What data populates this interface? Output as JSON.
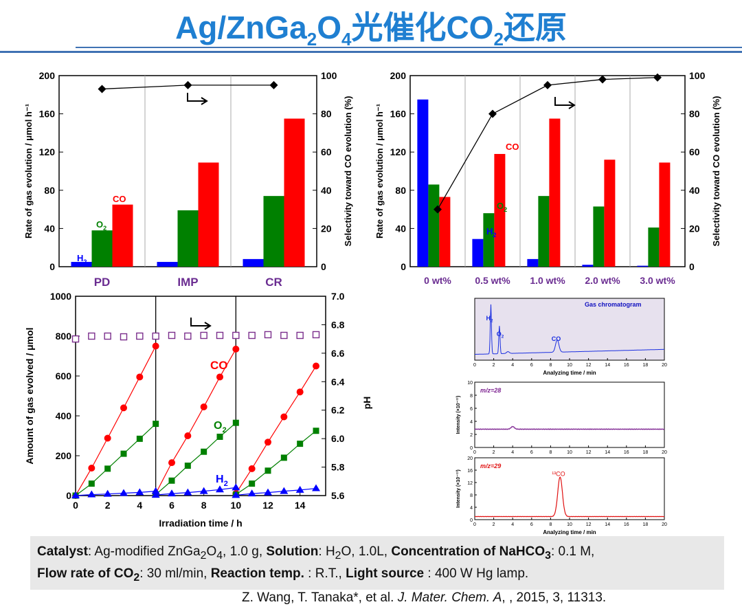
{
  "title": {
    "pre": "Ag/ZnGa",
    "s1": "2",
    "mid": "O",
    "s2": "4",
    "post": "光催化CO",
    "s3": "2",
    "end": "还原"
  },
  "chart_data": [
    {
      "id": "A",
      "type": "bar",
      "title": "",
      "ylabel": "Rate of gas evolution / μmol h⁻¹",
      "y2label": "Selectivity toward CO evolution (%)",
      "ylim": [
        0,
        200
      ],
      "y2lim": [
        0,
        100
      ],
      "yticks": [
        "0",
        "40",
        "80",
        "120",
        "160",
        "200"
      ],
      "y2ticks": [
        "0",
        "20",
        "40",
        "60",
        "80",
        "100"
      ],
      "categories": [
        "PD",
        "IMP",
        "CR"
      ],
      "series": [
        {
          "name": "H2",
          "color": "#0000ff",
          "values": [
            5,
            5,
            8
          ]
        },
        {
          "name": "O2",
          "color": "#008000",
          "values": [
            38,
            59,
            74
          ]
        },
        {
          "name": "CO",
          "color": "#ff0000",
          "values": [
            65,
            109,
            155
          ]
        }
      ],
      "selectivity": [
        93,
        95,
        95
      ],
      "labels": {
        "h2": "H",
        "o2": "O",
        "co": "CO",
        "sub": "2"
      }
    },
    {
      "id": "B",
      "type": "bar",
      "ylabel": "Rate of gas evolution / μmol h⁻¹",
      "y2label": "Selectivity toward CO evolution (%)",
      "ylim": [
        0,
        200
      ],
      "y2lim": [
        0,
        100
      ],
      "yticks": [
        "0",
        "40",
        "80",
        "120",
        "160",
        "200"
      ],
      "y2ticks": [
        "0",
        "20",
        "40",
        "60",
        "80",
        "100"
      ],
      "categories": [
        "0 wt%",
        "0.5 wt%",
        "1.0 wt%",
        "2.0 wt%",
        "3.0 wt%"
      ],
      "series": [
        {
          "name": "H2",
          "color": "#0000ff",
          "values": [
            175,
            29,
            8,
            2,
            1
          ]
        },
        {
          "name": "O2",
          "color": "#008000",
          "values": [
            86,
            56,
            74,
            63,
            41
          ]
        },
        {
          "name": "CO",
          "color": "#ff0000",
          "values": [
            73,
            118,
            155,
            112,
            109
          ]
        }
      ],
      "selectivity": [
        30,
        80,
        95,
        98,
        99
      ],
      "labels": {
        "h2": "H",
        "o2": "O",
        "co": "CO",
        "sub": "2"
      }
    },
    {
      "id": "C",
      "type": "scatter",
      "xlabel": "Irradiation time / h",
      "ylabel": "Amount of gas evolved / μmol",
      "y2label": "pH",
      "xlim": [
        0,
        15.6
      ],
      "ylim": [
        0,
        1000
      ],
      "y2lim": [
        5.6,
        7.0
      ],
      "xticks": [
        "0",
        "2",
        "4",
        "6",
        "8",
        "10",
        "12",
        "14"
      ],
      "yticks": [
        "0",
        "200",
        "400",
        "600",
        "800",
        "1000"
      ],
      "y2ticks": [
        "5.6",
        "5.8",
        "6.0",
        "6.2",
        "6.4",
        "6.6",
        "6.8",
        "7.0"
      ],
      "cycle_breaks": [
        5,
        10
      ],
      "series": [
        {
          "name": "CO",
          "color": "#ff0000",
          "marker": "circle",
          "x": [
            0,
            1,
            2,
            3,
            4,
            5,
            5,
            6,
            7,
            8,
            9,
            10,
            10,
            11,
            12,
            13,
            14,
            15
          ],
          "y": [
            0,
            138,
            288,
            440,
            595,
            750,
            10,
            165,
            300,
            445,
            595,
            735,
            10,
            135,
            268,
            395,
            520,
            650
          ]
        },
        {
          "name": "O2",
          "color": "#008000",
          "marker": "square",
          "x": [
            0,
            1,
            2,
            3,
            4,
            5,
            5,
            6,
            7,
            8,
            9,
            10,
            10,
            11,
            12,
            13,
            14,
            15
          ],
          "y": [
            0,
            60,
            135,
            210,
            285,
            360,
            5,
            75,
            150,
            220,
            295,
            365,
            5,
            60,
            125,
            190,
            260,
            325
          ]
        },
        {
          "name": "H2",
          "color": "#0000ff",
          "marker": "triangle",
          "x": [
            0,
            1,
            2,
            3,
            4,
            5,
            5,
            6,
            7,
            8,
            9,
            10,
            10,
            11,
            12,
            13,
            14,
            15
          ],
          "y": [
            0,
            5,
            8,
            12,
            16,
            22,
            3,
            10,
            15,
            22,
            30,
            40,
            2,
            10,
            15,
            22,
            28,
            36
          ]
        },
        {
          "name": "pH",
          "color": "#7b2e8c",
          "marker": "open-square",
          "x": [
            0,
            1,
            2,
            3,
            4,
            5,
            6,
            7,
            8,
            9,
            10,
            11,
            12,
            13,
            14,
            15
          ],
          "y": [
            6.7,
            6.72,
            6.72,
            6.715,
            6.72,
            6.72,
            6.725,
            6.72,
            6.725,
            6.725,
            6.725,
            6.725,
            6.73,
            6.725,
            6.725,
            6.73
          ]
        }
      ],
      "labels": {
        "co": "CO",
        "o2": "O",
        "h2": "H",
        "sub": "2"
      }
    },
    {
      "id": "D",
      "type": "line",
      "title": "Gas chromatogram",
      "xlabel": "Analyzing time / min",
      "xlim": [
        0,
        20
      ],
      "xticks": [
        "0",
        "2",
        "4",
        "6",
        "8",
        "10",
        "12",
        "14",
        "16",
        "18",
        "20"
      ],
      "peaks": [
        {
          "name": "H2",
          "x": 1.7,
          "height": 0.8
        },
        {
          "name": "O2",
          "x": 2.6,
          "height": 0.45
        },
        {
          "name": "CO",
          "x": 8.7,
          "height": 0.2
        }
      ],
      "labels": {
        "h": "H",
        "o": "O",
        "co": "CO",
        "sub": "2"
      }
    },
    {
      "id": "E",
      "type": "line",
      "title": "m/z=28",
      "xlabel": "",
      "ylabel": "Intensity (×10⁻¹¹)",
      "xlim": [
        0,
        20
      ],
      "ylim": [
        0,
        10
      ],
      "xticks": [
        "0",
        "2",
        "4",
        "6",
        "8",
        "10",
        "12",
        "14",
        "16",
        "18",
        "20"
      ],
      "yticks": [
        "0",
        "2",
        "4",
        "6",
        "8",
        "10"
      ],
      "baseline": 2.8,
      "bump": {
        "x": 4,
        "height": 0.4
      }
    },
    {
      "id": "F",
      "type": "line",
      "title": "m/z=29",
      "xlabel": "Analyzing time / min",
      "ylabel": "Intensity (×10⁻¹¹)",
      "xlim": [
        0,
        20
      ],
      "ylim": [
        0,
        20
      ],
      "xticks": [
        "0",
        "2",
        "4",
        "6",
        "8",
        "10",
        "12",
        "14",
        "16",
        "18",
        "20"
      ],
      "yticks": [
        "0",
        "4",
        "8",
        "12",
        "16",
        "20"
      ],
      "baseline": 1.0,
      "peak": {
        "x": 9,
        "height": 12.8
      },
      "peak_label": "¹³CO"
    }
  ],
  "info": {
    "cat_label": "Catalyst",
    "cat_text": ": Ag-modified ZnGa",
    "cat_s1": "2",
    "cat_o": "O",
    "cat_s2": "4",
    "cat_rest": ", 1.0 g, ",
    "sol_label": "Solution",
    "sol_text": ": H",
    "sol_s": "2",
    "sol_rest": "O, 1.0L, ",
    "conc_label": "Concentration of NaHCO",
    "conc_s": "3",
    "conc_rest": ": 0.1 M,",
    "flow_label": "Flow rate of CO",
    "flow_s": "2",
    "flow_rest": ": 30 ml/min, ",
    "temp_label": "Reaction temp.",
    "temp_rest": " : R.T., ",
    "light_label": "Light source",
    "light_rest": " : 400 W Hg lamp."
  },
  "reference": {
    "authors": "Z. Wang, T. Tanaka*, et al. ",
    "journal": "J. Mater. Chem. A",
    "rest": ", , 2015, 3, 11313."
  }
}
